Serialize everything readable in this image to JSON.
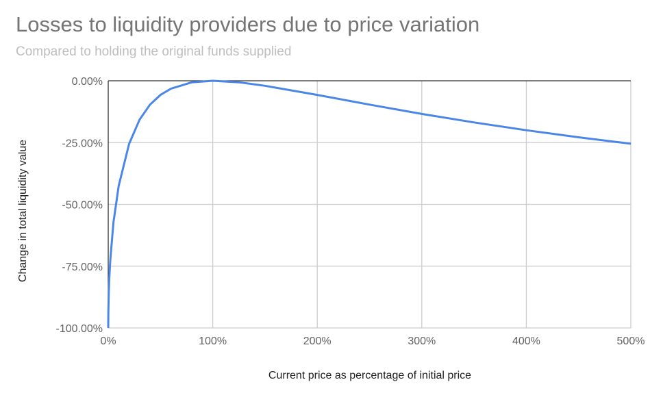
{
  "chart_data": {
    "type": "line",
    "title": "Losses to liquidity providers due to price variation",
    "subtitle": "Compared to holding the original funds supplied",
    "xlabel": "Current price as percentage of initial price",
    "ylabel": "Change in total liquidity value",
    "xlim": [
      0,
      500
    ],
    "ylim": [
      -100,
      0
    ],
    "grid": true,
    "x_ticks": [
      0,
      100,
      200,
      300,
      400,
      500
    ],
    "x_tick_labels": [
      "0%",
      "100%",
      "200%",
      "300%",
      "400%",
      "500%"
    ],
    "y_ticks": [
      0,
      -25,
      -50,
      -75,
      -100
    ],
    "y_tick_labels": [
      "0.00%",
      "-25.00%",
      "-50.00%",
      "-75.00%",
      "-100.00%"
    ],
    "series": [
      {
        "name": "Change in total liquidity value",
        "color": "#4a86e8",
        "x": [
          0,
          0.1,
          0.5,
          1,
          2,
          5,
          10,
          20,
          30,
          40,
          50,
          60,
          80,
          100,
          125,
          150,
          200,
          250,
          300,
          350,
          400,
          450,
          500
        ],
        "y": [
          -100,
          -93.7,
          -85.9,
          -80.2,
          -72.3,
          -57.4,
          -42.5,
          -25.5,
          -15.7,
          -9.65,
          -5.72,
          -3.18,
          -0.62,
          0,
          -0.62,
          -2.02,
          -5.72,
          -9.65,
          -13.4,
          -16.85,
          -20,
          -22.86,
          -25.46
        ]
      }
    ]
  }
}
